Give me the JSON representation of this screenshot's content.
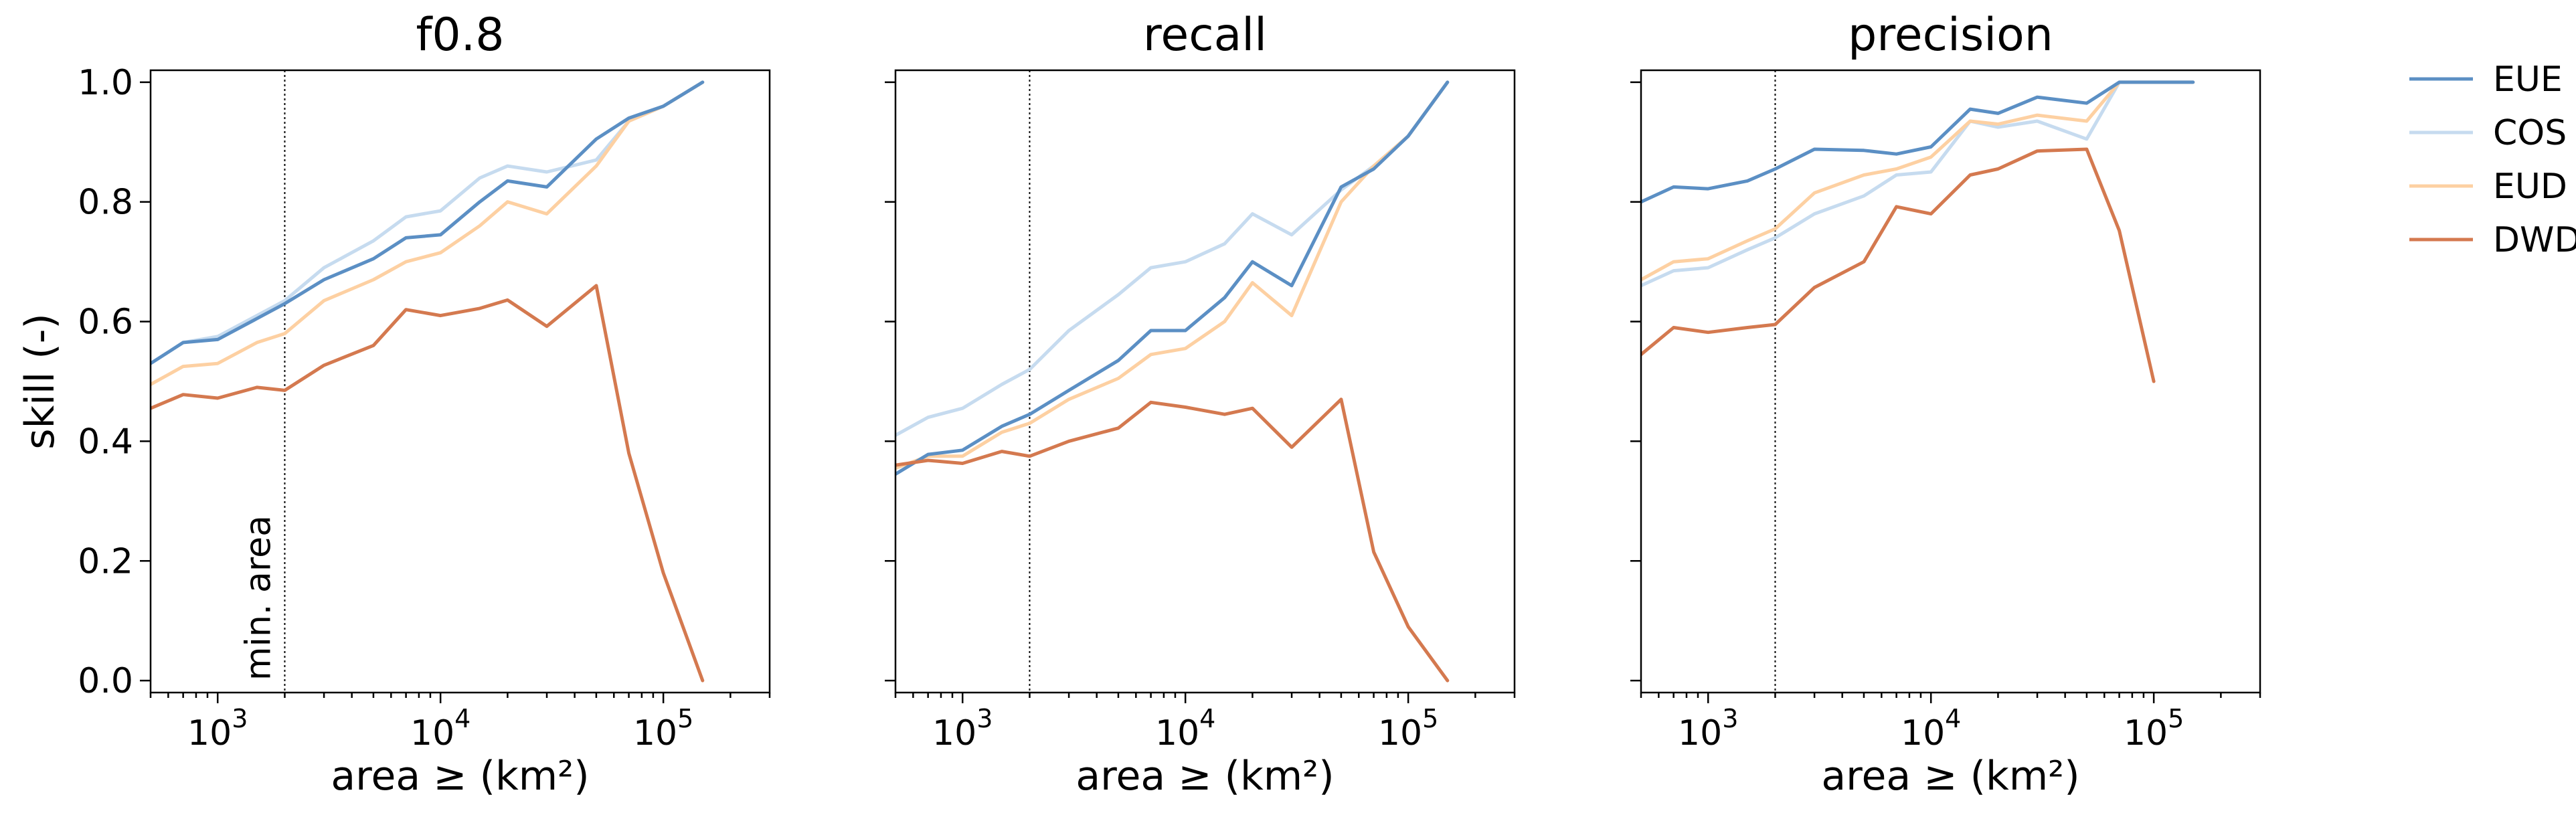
{
  "chart_data": [
    {
      "type": "line",
      "title": "f0.8",
      "xlabel": "area ≥ (km²)",
      "ylabel": "skill (-)",
      "x_scale": "log",
      "xlim": [
        500,
        300000
      ],
      "ylim": [
        -0.02,
        1.02
      ],
      "x_ticks": [
        {
          "value": 1000,
          "label": "10",
          "exp": "3"
        },
        {
          "value": 10000,
          "label": "10",
          "exp": "4"
        },
        {
          "value": 100000,
          "label": "10",
          "exp": "5"
        }
      ],
      "y_ticks": [
        {
          "value": 0.0,
          "label": "0.0"
        },
        {
          "value": 0.2,
          "label": "0.2"
        },
        {
          "value": 0.4,
          "label": "0.4"
        },
        {
          "value": 0.6,
          "label": "0.6"
        },
        {
          "value": 0.8,
          "label": "0.8"
        },
        {
          "value": 1.0,
          "label": "1.0"
        }
      ],
      "vline": {
        "x": 2000,
        "label": "min. area"
      },
      "series": [
        {
          "name": "COS",
          "color": "#c6dbef",
          "x": [
            500,
            700,
            1000,
            1500,
            2000,
            3000,
            5000,
            7000,
            10000,
            15000,
            20000,
            30000,
            50000,
            70000,
            100000,
            150000
          ],
          "y": [
            0.53,
            0.565,
            0.575,
            0.61,
            0.635,
            0.69,
            0.735,
            0.775,
            0.785,
            0.84,
            0.86,
            0.85,
            0.87,
            0.935,
            0.96,
            1.0
          ]
        },
        {
          "name": "EUD",
          "color": "#fdd0a2",
          "x": [
            500,
            700,
            1000,
            1500,
            2000,
            3000,
            5000,
            7000,
            10000,
            15000,
            20000,
            30000,
            50000,
            70000,
            100000,
            150000
          ],
          "y": [
            0.495,
            0.525,
            0.53,
            0.565,
            0.58,
            0.635,
            0.67,
            0.7,
            0.715,
            0.76,
            0.8,
            0.78,
            0.86,
            0.935,
            0.96,
            1.0
          ]
        },
        {
          "name": "EUE",
          "color": "#5b8fc4",
          "x": [
            500,
            700,
            1000,
            1500,
            2000,
            3000,
            5000,
            7000,
            10000,
            15000,
            20000,
            30000,
            50000,
            70000,
            100000,
            150000
          ],
          "y": [
            0.53,
            0.565,
            0.57,
            0.605,
            0.63,
            0.67,
            0.705,
            0.74,
            0.745,
            0.8,
            0.835,
            0.825,
            0.905,
            0.94,
            0.96,
            1.0
          ]
        },
        {
          "name": "DWD",
          "color": "#d4794f",
          "x": [
            500,
            700,
            1000,
            1500,
            2000,
            3000,
            5000,
            7000,
            10000,
            15000,
            20000,
            30000,
            50000,
            70000,
            100000,
            150000
          ],
          "y": [
            0.455,
            0.478,
            0.472,
            0.49,
            0.485,
            0.527,
            0.56,
            0.62,
            0.61,
            0.622,
            0.636,
            0.592,
            0.66,
            0.38,
            0.18,
            0.0
          ]
        }
      ]
    },
    {
      "type": "line",
      "title": "recall",
      "xlabel": "area ≥ (km²)",
      "ylabel": "",
      "x_scale": "log",
      "xlim": [
        500,
        300000
      ],
      "ylim": [
        -0.02,
        1.02
      ],
      "x_ticks": [
        {
          "value": 1000,
          "label": "10",
          "exp": "3"
        },
        {
          "value": 10000,
          "label": "10",
          "exp": "4"
        },
        {
          "value": 100000,
          "label": "10",
          "exp": "5"
        }
      ],
      "y_ticks": [
        {
          "value": 0.0
        },
        {
          "value": 0.2
        },
        {
          "value": 0.4
        },
        {
          "value": 0.6
        },
        {
          "value": 0.8
        },
        {
          "value": 1.0
        }
      ],
      "vline": {
        "x": 2000
      },
      "series": [
        {
          "name": "COS",
          "color": "#c6dbef",
          "x": [
            500,
            700,
            1000,
            1500,
            2000,
            3000,
            5000,
            7000,
            10000,
            15000,
            20000,
            30000,
            50000,
            70000,
            100000,
            150000
          ],
          "y": [
            0.41,
            0.44,
            0.455,
            0.495,
            0.52,
            0.585,
            0.645,
            0.69,
            0.7,
            0.73,
            0.78,
            0.745,
            0.82,
            0.86,
            0.91,
            1.0
          ]
        },
        {
          "name": "EUD",
          "color": "#fdd0a2",
          "x": [
            500,
            700,
            1000,
            1500,
            2000,
            3000,
            5000,
            7000,
            10000,
            15000,
            20000,
            30000,
            50000,
            70000,
            100000,
            150000
          ],
          "y": [
            0.355,
            0.375,
            0.375,
            0.415,
            0.43,
            0.47,
            0.505,
            0.545,
            0.555,
            0.6,
            0.665,
            0.61,
            0.8,
            0.86,
            0.91,
            1.0
          ]
        },
        {
          "name": "EUE",
          "color": "#5b8fc4",
          "x": [
            500,
            700,
            1000,
            1500,
            2000,
            3000,
            5000,
            7000,
            10000,
            15000,
            20000,
            30000,
            50000,
            70000,
            100000,
            150000
          ],
          "y": [
            0.345,
            0.378,
            0.385,
            0.425,
            0.445,
            0.485,
            0.535,
            0.585,
            0.585,
            0.64,
            0.7,
            0.66,
            0.825,
            0.855,
            0.91,
            1.0
          ]
        },
        {
          "name": "DWD",
          "color": "#d4794f",
          "x": [
            500,
            700,
            1000,
            1500,
            2000,
            3000,
            5000,
            7000,
            10000,
            15000,
            20000,
            30000,
            50000,
            70000,
            100000,
            150000
          ],
          "y": [
            0.36,
            0.368,
            0.363,
            0.383,
            0.375,
            0.4,
            0.422,
            0.465,
            0.457,
            0.445,
            0.455,
            0.39,
            0.47,
            0.215,
            0.09,
            0.0
          ]
        }
      ]
    },
    {
      "type": "line",
      "title": "precision",
      "xlabel": "area ≥ (km²)",
      "ylabel": "",
      "x_scale": "log",
      "xlim": [
        500,
        300000
      ],
      "ylim": [
        -0.02,
        1.02
      ],
      "x_ticks": [
        {
          "value": 1000,
          "label": "10",
          "exp": "3"
        },
        {
          "value": 10000,
          "label": "10",
          "exp": "4"
        },
        {
          "value": 100000,
          "label": "10",
          "exp": "5"
        }
      ],
      "y_ticks": [
        {
          "value": 0.0
        },
        {
          "value": 0.2
        },
        {
          "value": 0.4
        },
        {
          "value": 0.6
        },
        {
          "value": 0.8
        },
        {
          "value": 1.0
        }
      ],
      "vline": {
        "x": 2000
      },
      "series": [
        {
          "name": "COS",
          "color": "#c6dbef",
          "x": [
            500,
            700,
            1000,
            1500,
            2000,
            3000,
            5000,
            7000,
            10000,
            15000,
            20000,
            30000,
            50000,
            70000,
            100000,
            150000
          ],
          "y": [
            0.66,
            0.685,
            0.69,
            0.72,
            0.74,
            0.78,
            0.81,
            0.845,
            0.85,
            0.935,
            0.925,
            0.935,
            0.905,
            1.0,
            1.0,
            1.0
          ]
        },
        {
          "name": "EUD",
          "color": "#fdd0a2",
          "x": [
            500,
            700,
            1000,
            1500,
            2000,
            3000,
            5000,
            7000,
            10000,
            15000,
            20000,
            30000,
            50000,
            70000,
            100000,
            150000
          ],
          "y": [
            0.67,
            0.7,
            0.705,
            0.735,
            0.755,
            0.815,
            0.845,
            0.855,
            0.875,
            0.935,
            0.93,
            0.945,
            0.935,
            1.0,
            1.0,
            1.0
          ]
        },
        {
          "name": "EUE",
          "color": "#5b8fc4",
          "x": [
            500,
            700,
            1000,
            1500,
            2000,
            3000,
            5000,
            7000,
            10000,
            15000,
            20000,
            30000,
            50000,
            70000,
            100000,
            150000
          ],
          "y": [
            0.8,
            0.825,
            0.822,
            0.835,
            0.855,
            0.888,
            0.886,
            0.88,
            0.892,
            0.955,
            0.948,
            0.975,
            0.965,
            1.0,
            1.0,
            1.0
          ]
        },
        {
          "name": "DWD",
          "color": "#d4794f",
          "x": [
            500,
            700,
            1000,
            1500,
            2000,
            3000,
            5000,
            7000,
            10000,
            15000,
            20000,
            30000,
            50000,
            70000,
            100000
          ],
          "y": [
            0.545,
            0.59,
            0.582,
            0.59,
            0.595,
            0.657,
            0.7,
            0.792,
            0.78,
            0.845,
            0.855,
            0.885,
            0.888,
            0.752,
            0.5
          ]
        }
      ]
    }
  ],
  "legend": {
    "placement": "right",
    "entries": [
      {
        "name": "EUE",
        "color": "#5b8fc4"
      },
      {
        "name": "COS",
        "color": "#c6dbef"
      },
      {
        "name": "EUD",
        "color": "#fdd0a2"
      },
      {
        "name": "DWD",
        "color": "#d4794f"
      }
    ]
  }
}
